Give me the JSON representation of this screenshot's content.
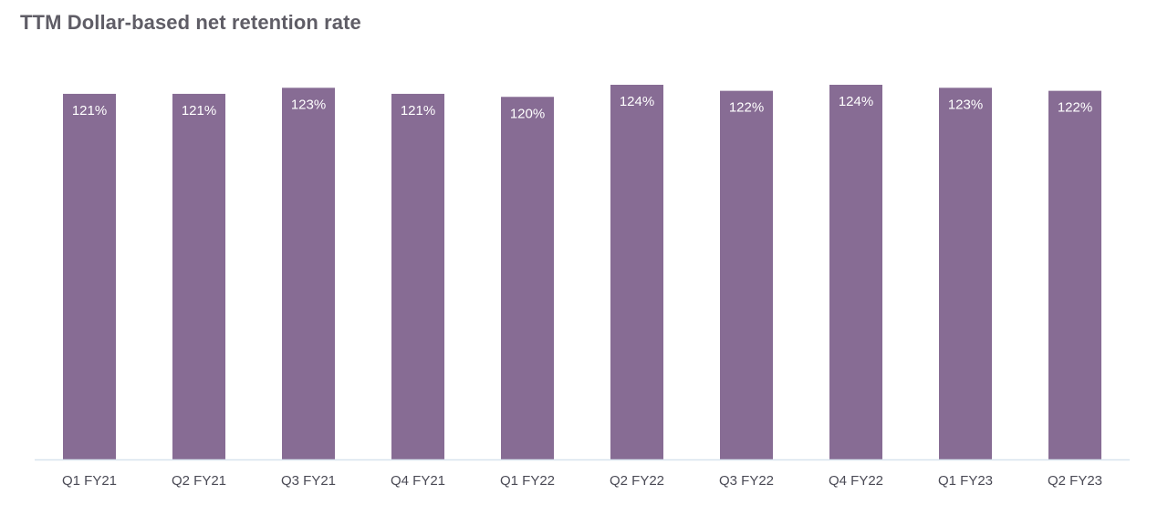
{
  "chart_data": {
    "type": "bar",
    "title": "TTM Dollar-based net retention rate",
    "xlabel": "",
    "ylabel": "",
    "categories": [
      "Q1 FY21",
      "Q2 FY21",
      "Q3 FY21",
      "Q4 FY21",
      "Q1 FY22",
      "Q2 FY22",
      "Q3 FY22",
      "Q4 FY22",
      "Q1 FY23",
      "Q2 FY23"
    ],
    "values": [
      121,
      121,
      123,
      121,
      120,
      124,
      122,
      124,
      123,
      122
    ],
    "data_labels": [
      "121%",
      "121%",
      "123%",
      "121%",
      "120%",
      "124%",
      "122%",
      "124%",
      "123%",
      "122%"
    ],
    "value_unit": "%",
    "ylim": [
      0,
      124
    ],
    "grid": false,
    "legend": "none",
    "colors": {
      "bar": "#876c94",
      "bar_label": "#ffffff",
      "axis_line": "#d8e4ee",
      "tick_label": "#4a4a55",
      "title": "#5f5d66"
    }
  }
}
